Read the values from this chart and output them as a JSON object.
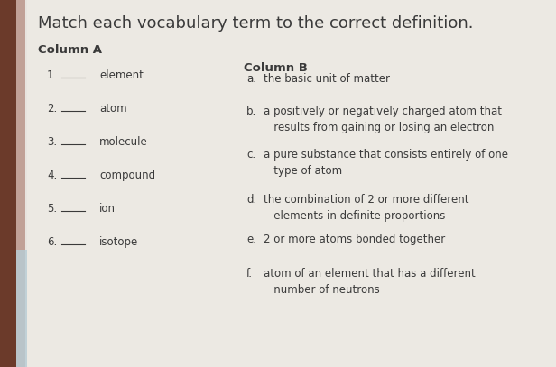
{
  "title": "Match each vocabulary term to the correct definition.",
  "col_a_header": "Column A",
  "col_b_header": "Column B",
  "background_color": "#e8e4df",
  "paper_color": "#ece8e2",
  "left_shadow_color": "#5a3428",
  "bottom_shadow_color": "#b0c8d0",
  "text_color": "#3a3a3a",
  "title_fontsize": 13,
  "header_fontsize": 9.5,
  "body_fontsize": 8.5,
  "col_a_items": [
    {
      "num": "1",
      "term": "element"
    },
    {
      "num": "2.",
      "term": "atom"
    },
    {
      "num": "3.",
      "term": "molecule"
    },
    {
      "num": "4.",
      "term": "compound"
    },
    {
      "num": "5.",
      "term": "ion"
    },
    {
      "num": "6.",
      "term": "isotope"
    }
  ],
  "col_b_items": [
    {
      "letter": "a.",
      "text": "the basic unit of matter"
    },
    {
      "letter": "b.",
      "text": "a positively or negatively charged atom that\n   results from gaining or losing an electron"
    },
    {
      "letter": "c.",
      "text": "a pure substance that consists entirely of one\n   type of atom"
    },
    {
      "letter": "d.",
      "text": "the combination of 2 or more different\n   elements in definite proportions"
    },
    {
      "letter": "e.",
      "text": "2 or more atoms bonded together"
    },
    {
      "letter": "f.",
      "text": "atom of an element that has a different\n   number of neutrons"
    }
  ]
}
